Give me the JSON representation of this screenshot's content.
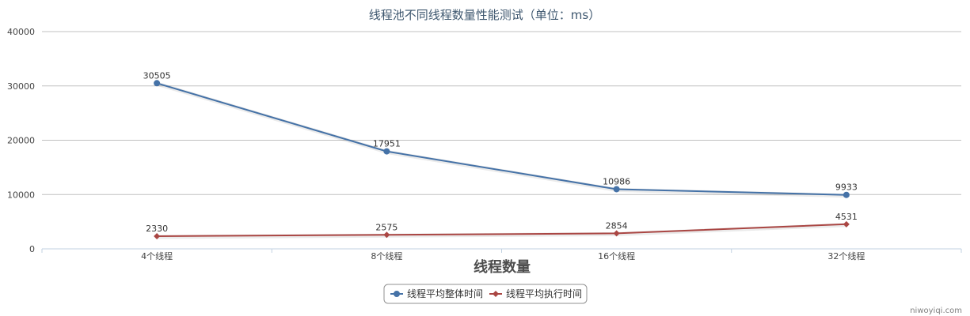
{
  "chart_data": {
    "type": "line",
    "title": "线程池不同线程数量性能测试（单位：ms）",
    "xlabel": "线程数量",
    "ylabel": "",
    "categories": [
      "4个线程",
      "8个线程",
      "16个线程",
      "32个线程"
    ],
    "ylim": [
      0,
      40000
    ],
    "yticks": [
      0,
      10000,
      20000,
      30000,
      40000
    ],
    "grid": true,
    "legend_position": "bottom",
    "series": [
      {
        "name": "线程平均整体时间",
        "values": [
          30505,
          17951,
          10986,
          9933
        ],
        "color": "#4572a7",
        "marker": "circle"
      },
      {
        "name": "线程平均执行时间",
        "values": [
          2330,
          2575,
          2854,
          4531
        ],
        "color": "#aa4643",
        "marker": "diamond"
      }
    ]
  },
  "credit": "niwoyiqi.com"
}
